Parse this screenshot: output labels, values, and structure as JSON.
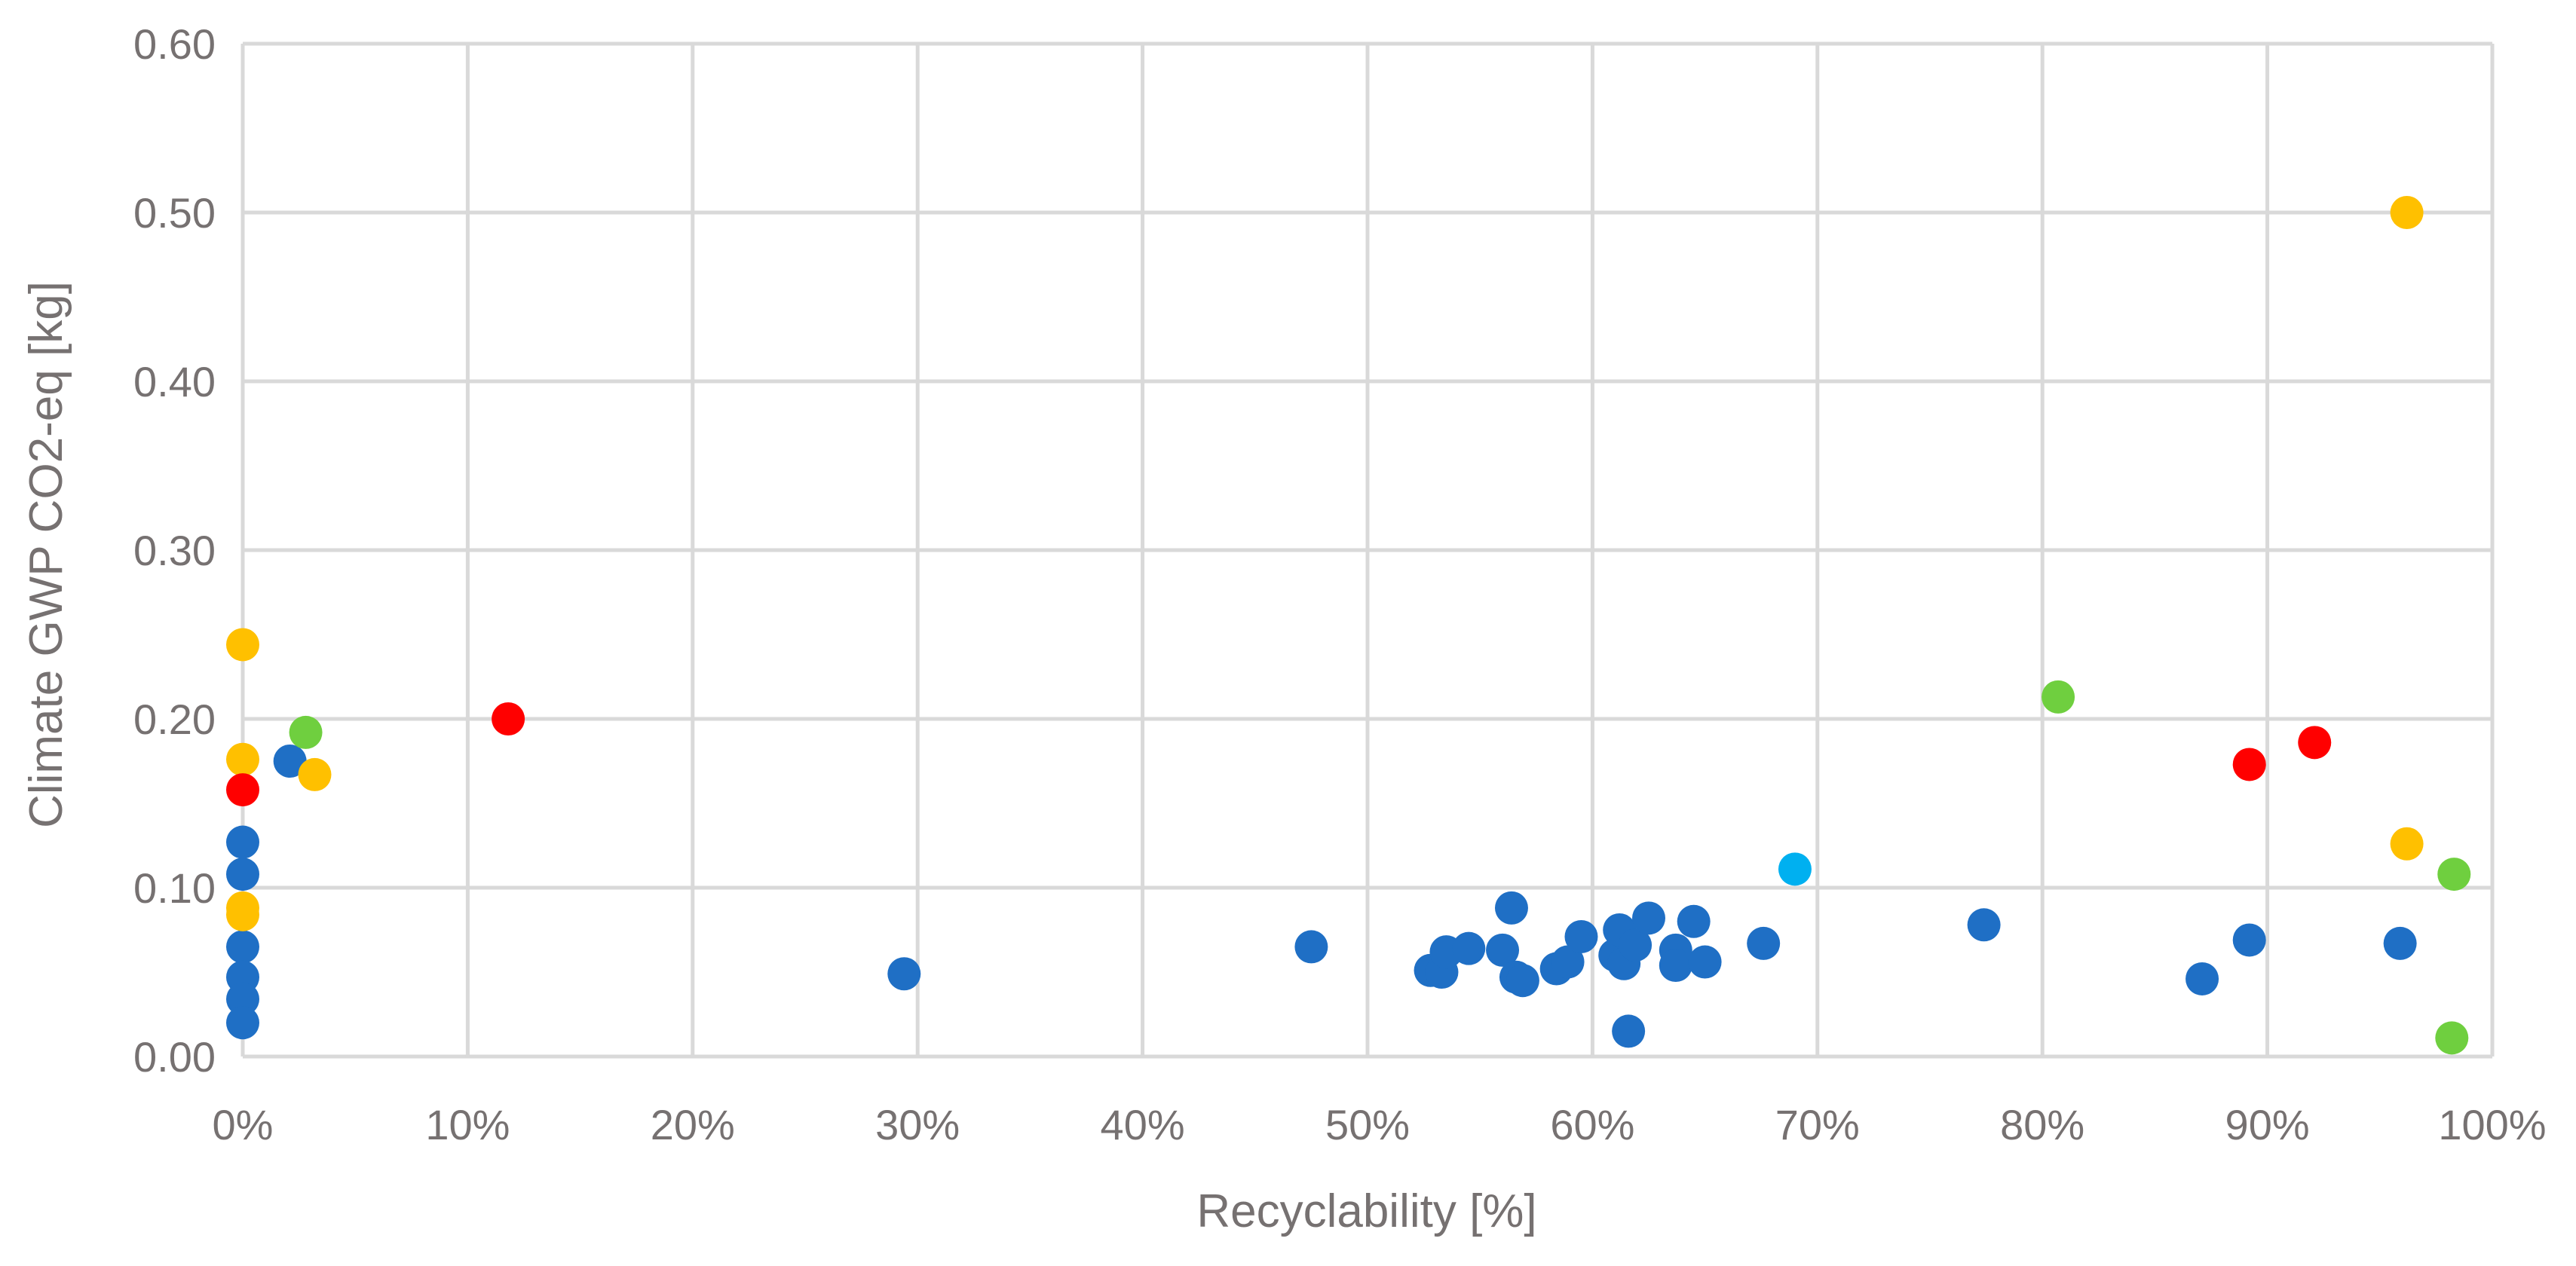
{
  "chart_data": {
    "type": "scatter",
    "title": "",
    "xlabel": "Recyclability [%]",
    "ylabel": "Climate GWP CO2-eq [kg]",
    "xlim": [
      0,
      100
    ],
    "ylim": [
      0,
      0.6
    ],
    "x_ticks": [
      0,
      10,
      20,
      30,
      40,
      50,
      60,
      70,
      80,
      90,
      100
    ],
    "x_tick_labels": [
      "0%",
      "10%",
      "20%",
      "30%",
      "40%",
      "50%",
      "60%",
      "70%",
      "80%",
      "90%",
      "100%"
    ],
    "y_ticks": [
      0,
      0.1,
      0.2,
      0.3,
      0.4,
      0.5,
      0.6
    ],
    "y_tick_labels": [
      "0.00",
      "0.10",
      "0.20",
      "0.30",
      "0.40",
      "0.50",
      "0.60"
    ],
    "grid": true,
    "legend": "none",
    "colors": {
      "blue": "#1f6fc5",
      "yellow": "#ffc000",
      "red": "#ff0000",
      "green": "#6fcf3f",
      "cyan": "#00b0f0"
    },
    "series": [
      {
        "color": "#1f6fc5",
        "points": [
          [
            0,
            0.127
          ],
          [
            0,
            0.108
          ],
          [
            0,
            0.065
          ],
          [
            0,
            0.047
          ],
          [
            0,
            0.034
          ],
          [
            0,
            0.02
          ],
          [
            2.1,
            0.175
          ],
          [
            29.4,
            0.049
          ],
          [
            47.5,
            0.065
          ],
          [
            52.8,
            0.051
          ],
          [
            53.3,
            0.05
          ],
          [
            53.5,
            0.062
          ],
          [
            54.5,
            0.064
          ],
          [
            56.0,
            0.063
          ],
          [
            56.4,
            0.088
          ],
          [
            56.6,
            0.047
          ],
          [
            56.9,
            0.045
          ],
          [
            58.4,
            0.052
          ],
          [
            58.9,
            0.056
          ],
          [
            59.5,
            0.071
          ],
          [
            61.0,
            0.06
          ],
          [
            61.2,
            0.075
          ],
          [
            61.4,
            0.055
          ],
          [
            61.6,
            0.015
          ],
          [
            61.9,
            0.066
          ],
          [
            62.5,
            0.082
          ],
          [
            63.7,
            0.063
          ],
          [
            63.7,
            0.054
          ],
          [
            64.5,
            0.08
          ],
          [
            65.0,
            0.056
          ],
          [
            67.6,
            0.067
          ],
          [
            77.4,
            0.078
          ],
          [
            87.1,
            0.046
          ],
          [
            89.2,
            0.069
          ],
          [
            95.9,
            0.067
          ]
        ]
      },
      {
        "color": "#ffc000",
        "points": [
          [
            0,
            0.244
          ],
          [
            0,
            0.176
          ],
          [
            0,
            0.088
          ],
          [
            0,
            0.084
          ],
          [
            3.2,
            0.167
          ],
          [
            96.2,
            0.5
          ],
          [
            96.2,
            0.126
          ]
        ]
      },
      {
        "color": "#ff0000",
        "points": [
          [
            0,
            0.158
          ],
          [
            11.8,
            0.2
          ],
          [
            89.2,
            0.173
          ],
          [
            92.1,
            0.186
          ]
        ]
      },
      {
        "color": "#6fcf3f",
        "points": [
          [
            2.8,
            0.192
          ],
          [
            80.7,
            0.213
          ],
          [
            98.3,
            0.108
          ],
          [
            98.2,
            0.011
          ]
        ]
      },
      {
        "color": "#00b0f0",
        "points": [
          [
            69.0,
            0.111
          ]
        ]
      }
    ]
  }
}
